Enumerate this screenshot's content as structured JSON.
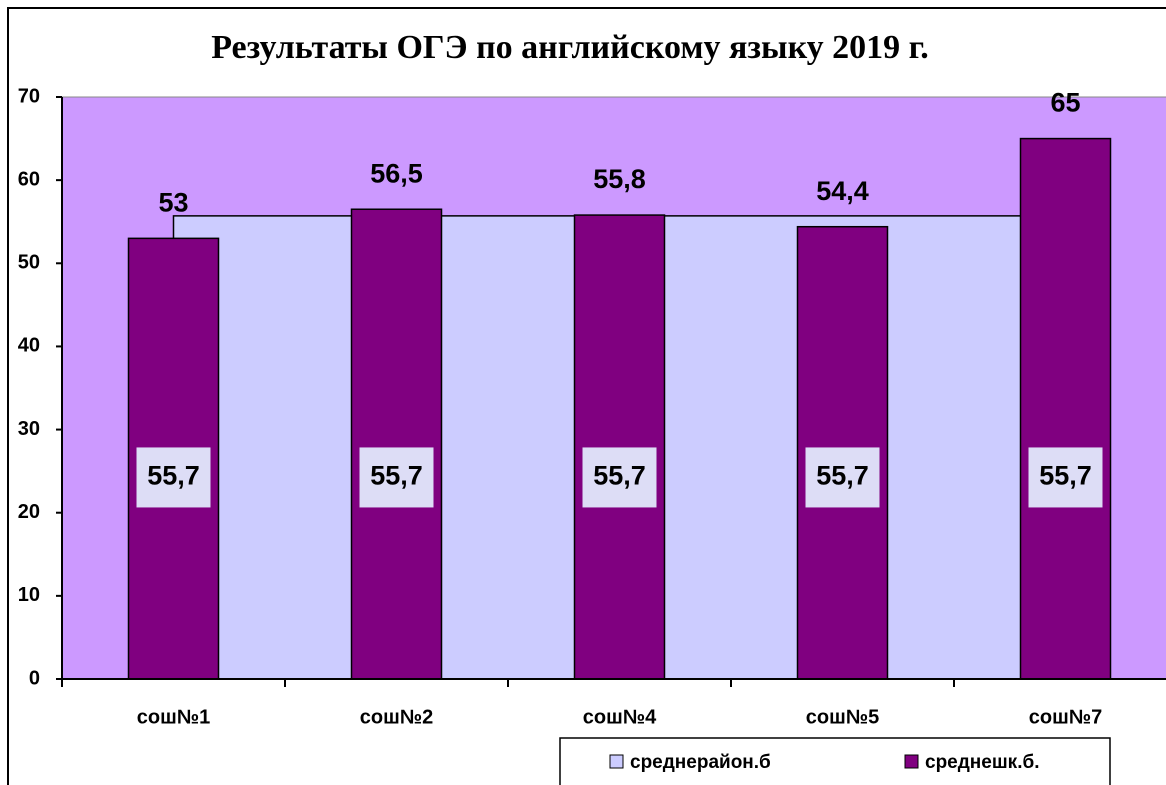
{
  "chart_data": {
    "type": "bar",
    "title": "Результаты ОГЭ по английскому языку 2019 г.",
    "categories": [
      "сош№1",
      "сош№2",
      "сош№4",
      "сош№5",
      "сош№7"
    ],
    "series": [
      {
        "name": "среднерайон.б",
        "type": "area",
        "color": "#ccccff",
        "values": [
          55.7,
          55.7,
          55.7,
          55.7,
          55.7
        ],
        "value_labels": [
          "55,7",
          "55,7",
          "55,7",
          "55,7",
          "55,7"
        ]
      },
      {
        "name": "среднешк.б.",
        "type": "bar",
        "color": "#800080",
        "values": [
          53,
          56.5,
          55.8,
          54.4,
          65
        ],
        "value_labels": [
          "53",
          "56,5",
          "55,8",
          "54,4",
          "65"
        ]
      }
    ],
    "plot_background": "#cc99ff",
    "ylim": [
      0,
      70
    ],
    "yticks": [
      0,
      10,
      20,
      30,
      40,
      50,
      60,
      70
    ],
    "legend": "bottom"
  }
}
